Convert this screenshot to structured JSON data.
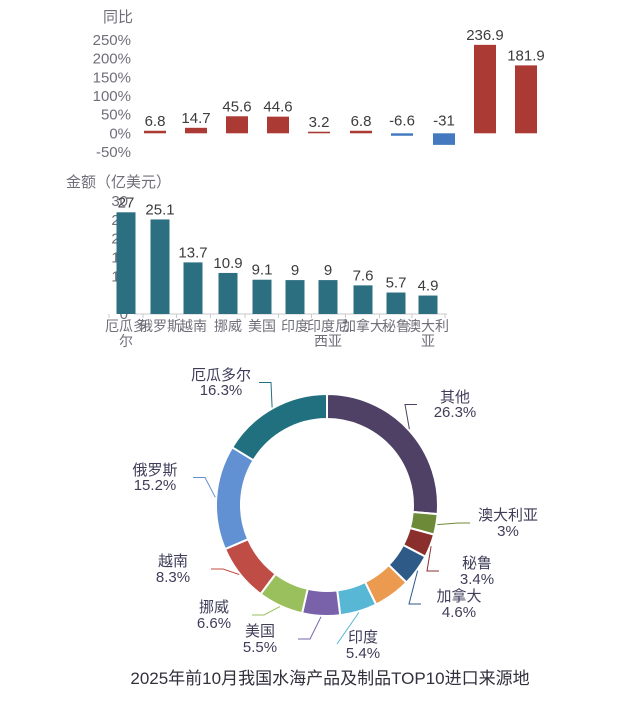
{
  "title": "2025年前10月我国水海产品及制品TOP10进口来源地",
  "chart_data": [
    {
      "type": "bar",
      "name": "yoy-growth",
      "ylabel": "同比",
      "categories": [
        "厄瓜多尔",
        "俄罗斯",
        "越南",
        "挪威",
        "美国",
        "印度",
        "印度尼西亚",
        "加拿大",
        "秘鲁",
        "澳大利亚"
      ],
      "values": [
        6.8,
        14.7,
        45.6,
        44.6,
        3.2,
        6.8,
        -6.6,
        -31,
        236.9,
        181.9
      ],
      "value_labels": [
        "6.8",
        "14.7",
        "45.6",
        "44.6",
        "3.2",
        "6.8",
        "-6.6",
        "-31",
        "236.9",
        "181.9"
      ],
      "y_ticks": [
        "250%",
        "200%",
        "150%",
        "100%",
        "50%",
        "0%",
        "-50%"
      ],
      "ylim": [
        -50,
        250
      ],
      "grid": false,
      "x_labels_visible": false,
      "positive_color": "#AC3A34",
      "negative_color": "#4379BF"
    },
    {
      "type": "bar",
      "name": "import-value",
      "ylabel": "金额（亿美元）",
      "categories": [
        "厄瓜多尔",
        "俄罗斯",
        "越南",
        "挪威",
        "美国",
        "印度",
        "印度尼西亚",
        "加拿大",
        "秘鲁",
        "澳大利亚"
      ],
      "values": [
        27,
        25.1,
        13.7,
        10.9,
        9.1,
        9,
        9,
        7.6,
        5.7,
        4.9
      ],
      "value_labels": [
        "27",
        "25.1",
        "13.7",
        "10.9",
        "9.1",
        "9",
        "9",
        "7.6",
        "5.7",
        "4.9"
      ],
      "y_ticks": [
        "30",
        "25",
        "20",
        "15",
        "10",
        "5",
        "0"
      ],
      "ylim": [
        0,
        30
      ],
      "grid": false,
      "x_labels_visible": true,
      "bar_color": "#2B6F80"
    },
    {
      "type": "pie",
      "name": "import-share",
      "donut": true,
      "clockwise": true,
      "start_at_top": true,
      "segments": [
        {
          "label": "其他",
          "value": 26.3,
          "pct_label": "26.3%",
          "color": "#4F4166"
        },
        {
          "label": "澳大利亚",
          "value": 3,
          "pct_label": "3%",
          "color": "#6C8A38"
        },
        {
          "label": "秘鲁",
          "value": 3.4,
          "pct_label": "3.4%",
          "color": "#8A2F2C"
        },
        {
          "label": "加拿大",
          "value": 4.6,
          "pct_label": "4.6%",
          "color": "#2D5A87"
        },
        {
          "label": "",
          "value": 5.4,
          "pct_label": "",
          "color": "#EC9A50"
        },
        {
          "label": "印度",
          "value": 5.4,
          "pct_label": "5.4%",
          "color": "#57B7D5"
        },
        {
          "label": "美国",
          "value": 5.5,
          "pct_label": "5.5%",
          "color": "#7A62AB"
        },
        {
          "label": "挪威",
          "value": 6.6,
          "pct_label": "6.6%",
          "color": "#9ABF5D"
        },
        {
          "label": "越南",
          "value": 8.3,
          "pct_label": "8.3%",
          "color": "#BF4C45"
        },
        {
          "label": "俄罗斯",
          "value": 15.2,
          "pct_label": "15.2%",
          "color": "#6190D3"
        },
        {
          "label": "厄瓜多尔",
          "value": 16.3,
          "pct_label": "16.3%",
          "color": "#20707F"
        }
      ]
    }
  ]
}
